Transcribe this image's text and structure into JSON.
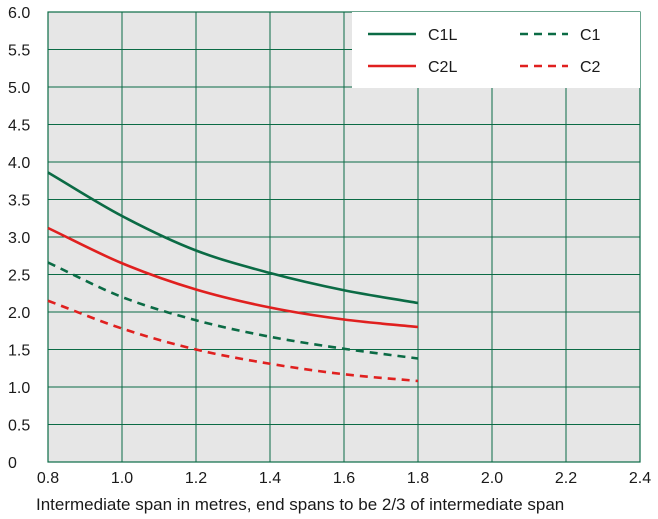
{
  "chart_data": {
    "type": "line",
    "xlabel": "Intermediate span in metres, end spans to be 2/3 of intermediate span",
    "ylabel": "",
    "xlim": [
      0.8,
      2.4
    ],
    "ylim": [
      0,
      6.0
    ],
    "x_ticks": [
      "0.8",
      "1.0",
      "1.2",
      "1.4",
      "1.6",
      "1.8",
      "2.0",
      "2.2",
      "2.4"
    ],
    "y_ticks": [
      "0",
      "0.5",
      "1.0",
      "1.5",
      "2.0",
      "2.5",
      "3.0",
      "3.5",
      "4.0",
      "4.5",
      "5.0",
      "5.5",
      "6.0"
    ],
    "grid": true,
    "legend_position": "top-right",
    "colors": {
      "plot_background": "#e6e6e6",
      "grid": "#0b6b45",
      "green": "#0b6b45",
      "red": "#e0201f"
    },
    "series": [
      {
        "name": "C1L",
        "color": "#0b6b45",
        "style": "solid",
        "x": [
          0.8,
          1.0,
          1.2,
          1.4,
          1.6,
          1.8
        ],
        "y": [
          3.86,
          3.28,
          2.82,
          2.52,
          2.29,
          2.12
        ]
      },
      {
        "name": "C1",
        "color": "#0b6b45",
        "style": "dashed",
        "x": [
          0.8,
          1.0,
          1.2,
          1.4,
          1.6,
          1.8
        ],
        "y": [
          2.66,
          2.2,
          1.89,
          1.67,
          1.51,
          1.38
        ]
      },
      {
        "name": "C2L",
        "color": "#e0201f",
        "style": "solid",
        "x": [
          0.8,
          1.0,
          1.2,
          1.4,
          1.6,
          1.8
        ],
        "y": [
          3.12,
          2.65,
          2.3,
          2.06,
          1.9,
          1.8
        ]
      },
      {
        "name": "C2",
        "color": "#e0201f",
        "style": "dashed",
        "x": [
          0.8,
          1.0,
          1.2,
          1.4,
          1.6,
          1.8
        ],
        "y": [
          2.15,
          1.78,
          1.5,
          1.31,
          1.17,
          1.08
        ]
      }
    ]
  }
}
